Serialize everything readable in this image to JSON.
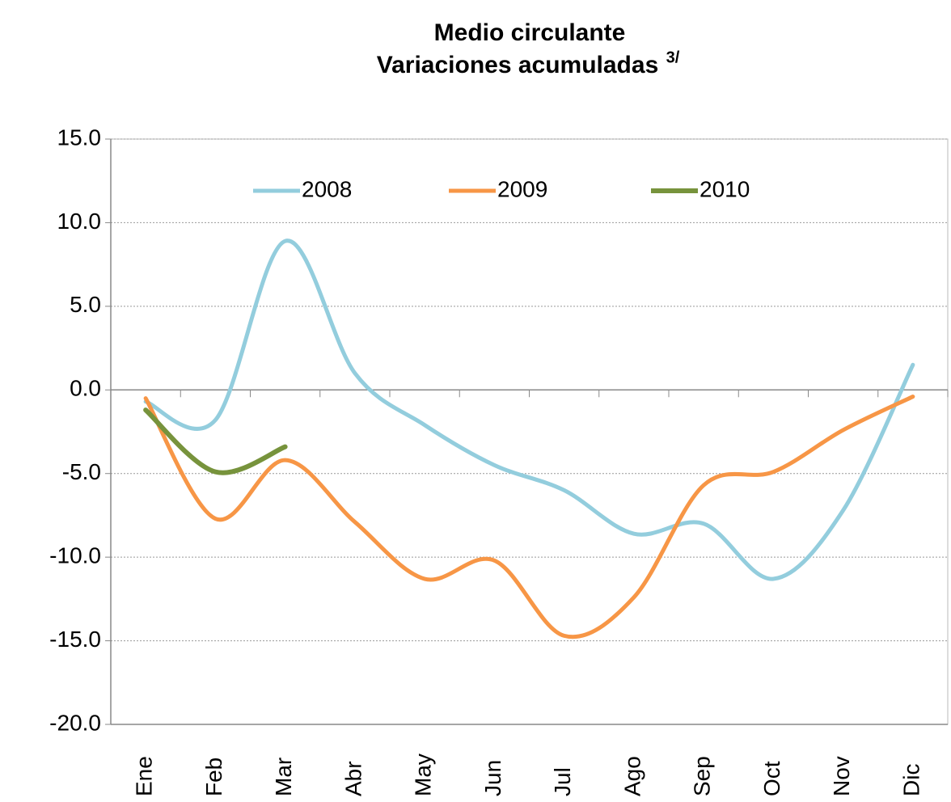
{
  "chart_data": {
    "type": "line",
    "title": "Medio circulante",
    "subtitle": "Variaciones acumuladas",
    "subtitle_note": "3/",
    "categories": [
      "Ene",
      "Feb",
      "Mar",
      "Abr",
      "May",
      "Jun",
      "Jul",
      "Ago",
      "Sep",
      "Oct",
      "Nov",
      "Dic"
    ],
    "series": [
      {
        "name": "2008",
        "color": "#93cddd",
        "values": [
          -0.7,
          -1.8,
          8.9,
          1.0,
          -2.1,
          -4.5,
          -6.0,
          -8.6,
          -8.0,
          -11.3,
          -7.2,
          1.5
        ]
      },
      {
        "name": "2009",
        "color": "#f79646",
        "values": [
          -0.5,
          -7.7,
          -4.2,
          -7.9,
          -11.3,
          -10.2,
          -14.7,
          -12.4,
          -5.7,
          -4.9,
          -2.4,
          -0.4
        ]
      },
      {
        "name": "2010",
        "color": "#77933c",
        "values": [
          -1.2,
          -4.9,
          -3.4,
          null,
          null,
          null,
          null,
          null,
          null,
          null,
          null,
          null
        ]
      }
    ],
    "ylim": [
      -20,
      15
    ],
    "yticks": [
      {
        "value": -20,
        "label": "-20.0"
      },
      {
        "value": -15,
        "label": "-15.0"
      },
      {
        "value": -10,
        "label": "-10.0"
      },
      {
        "value": -5,
        "label": "-5.0"
      },
      {
        "value": 0,
        "label": "0.0"
      },
      {
        "value": 5,
        "label": "5.0"
      },
      {
        "value": 10,
        "label": "10.0"
      },
      {
        "value": 15,
        "label": "15.0"
      }
    ],
    "grid": true,
    "legend": "top",
    "smooth": true
  }
}
